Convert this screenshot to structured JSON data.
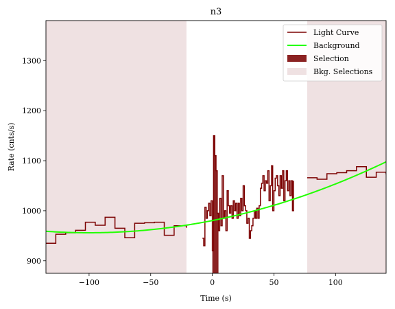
{
  "chart_data": {
    "type": "line",
    "title": "n3",
    "xlabel": "Time (s)",
    "ylabel": "Rate (cnts/s)",
    "xlim": [
      -135,
      141
    ],
    "ylim": [
      875,
      1380
    ],
    "x_ticks": [
      -100,
      -50,
      0,
      50,
      100
    ],
    "y_ticks": [
      900,
      1000,
      1100,
      1200,
      1300
    ],
    "x_tick_labels": [
      "−100",
      "−50",
      "0",
      "50",
      "100"
    ],
    "y_tick_labels": [
      "900",
      "1000",
      "1100",
      "1200",
      "1300"
    ],
    "grid": false,
    "legend_position": "top-right",
    "legend": [
      {
        "label": "Light Curve",
        "kind": "line",
        "color": "#7b0000"
      },
      {
        "label": "Background",
        "kind": "line",
        "color": "#22ff00"
      },
      {
        "label": "Selection",
        "kind": "patch",
        "color": "#8b2222"
      },
      {
        "label": "Bkg. Selections",
        "kind": "patch",
        "color": "#efe1e2"
      }
    ],
    "colors": {
      "light_curve": "#7b0000",
      "background": "#22ff00",
      "selection": "#8b2222",
      "bkg_selection": "#efe1e2"
    },
    "bkg_selections": [
      [
        -135,
        -21
      ],
      [
        77,
        141
      ]
    ],
    "selection": [
      0,
      5
    ],
    "background_poly": {
      "t0": -100,
      "c0": 956,
      "c2": 0.00244
    },
    "light_curve": [
      [
        [
          -135,
          935
        ],
        [
          -127,
          953
        ],
        [
          -119,
          956
        ],
        [
          -111,
          961
        ],
        [
          -103,
          977
        ],
        [
          -95,
          971
        ],
        [
          -87,
          987
        ],
        [
          -79,
          965
        ],
        [
          -71,
          946
        ],
        [
          -63,
          975
        ],
        [
          -55,
          976
        ],
        [
          -47,
          977
        ],
        [
          -39,
          951
        ],
        [
          -31,
          970
        ],
        [
          -21,
          966
        ]
      ],
      [
        [
          -8,
          945
        ],
        [
          -7,
          930
        ],
        [
          -6,
          1007
        ],
        [
          -5,
          985
        ],
        [
          -4,
          1000
        ],
        [
          -3,
          1015
        ],
        [
          -2,
          990
        ],
        [
          -1,
          1020
        ],
        [
          0,
          920
        ],
        [
          1,
          1150
        ],
        [
          2,
          1110
        ],
        [
          3,
          1080
        ],
        [
          4,
          995
        ],
        [
          5,
          960
        ],
        [
          6,
          1025
        ],
        [
          7,
          970
        ],
        [
          8,
          1070
        ],
        [
          9,
          985
        ],
        [
          10,
          1000
        ],
        [
          11,
          960
        ],
        [
          12,
          1040
        ],
        [
          13,
          1010
        ],
        [
          14,
          995
        ],
        [
          15,
          1010
        ],
        [
          16,
          985
        ],
        [
          17,
          1020
        ],
        [
          18,
          1000
        ],
        [
          19,
          1015
        ],
        [
          20,
          985
        ],
        [
          21,
          1015
        ],
        [
          22,
          990
        ],
        [
          23,
          1025
        ],
        [
          24,
          1000
        ],
        [
          25,
          1050
        ],
        [
          26,
          1010
        ],
        [
          27,
          1000
        ],
        [
          28,
          975
        ],
        [
          29,
          985
        ],
        [
          30,
          945
        ],
        [
          31,
          960
        ],
        [
          32,
          970
        ],
        [
          33,
          985
        ],
        [
          34,
          1000
        ],
        [
          35,
          985
        ],
        [
          36,
          1005
        ],
        [
          37,
          985
        ],
        [
          38,
          1010
        ],
        [
          39,
          1045
        ],
        [
          40,
          1055
        ],
        [
          41,
          1070
        ],
        [
          42,
          1040
        ],
        [
          43,
          1060
        ],
        [
          44,
          1055
        ],
        [
          45,
          1080
        ],
        [
          46,
          1020
        ],
        [
          47,
          1050
        ],
        [
          48,
          1090
        ],
        [
          49,
          1000
        ],
        [
          50,
          1040
        ],
        [
          51,
          1065
        ],
        [
          52,
          1070
        ],
        [
          53,
          1050
        ],
        [
          54,
          1030
        ],
        [
          55,
          1070
        ],
        [
          56,
          1045
        ],
        [
          57,
          1080
        ],
        [
          58,
          1020
        ],
        [
          59,
          1060
        ],
        [
          60,
          1080
        ],
        [
          61,
          1040
        ],
        [
          62,
          1060
        ],
        [
          63,
          1030
        ],
        [
          64,
          1060
        ],
        [
          65,
          1000
        ],
        [
          66,
          1060
        ]
      ],
      [
        [
          77,
          1066
        ],
        [
          85,
          1063
        ],
        [
          93,
          1074
        ],
        [
          101,
          1076
        ],
        [
          109,
          1080
        ],
        [
          117,
          1088
        ],
        [
          125,
          1067
        ],
        [
          133,
          1077
        ],
        [
          141,
          1073
        ]
      ]
    ]
  }
}
